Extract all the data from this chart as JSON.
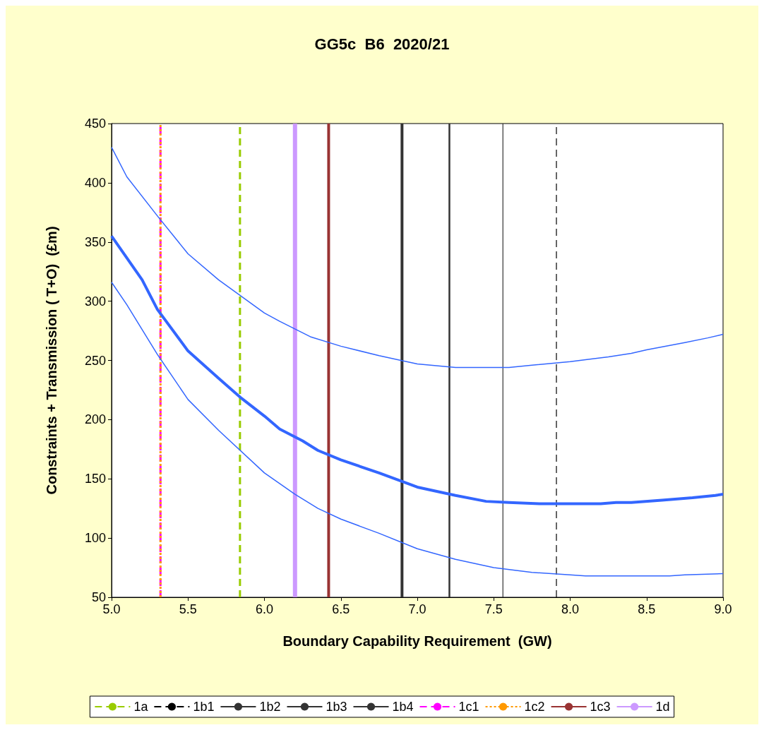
{
  "chart_data": {
    "type": "line",
    "title": "GG5c  B6  2020/21",
    "xlabel": "Boundary Capability Requirement  (GW)",
    "ylabel": "Constraints + Transmission ( T+O)  (£m)",
    "xlim": [
      5,
      9
    ],
    "xticks": [
      {
        "value": 5,
        "label": "5.0"
      },
      {
        "value": 5.5,
        "label": "5.5"
      },
      {
        "value": 6,
        "label": "6.0"
      },
      {
        "value": 6.5,
        "label": "6.5"
      },
      {
        "value": 7,
        "label": "7.0"
      },
      {
        "value": 7.5,
        "label": "7.5"
      },
      {
        "value": 8,
        "label": "8.0"
      },
      {
        "value": 8.5,
        "label": "8.5"
      },
      {
        "value": 9,
        "label": "9.0"
      }
    ],
    "ylim": [
      50,
      450
    ],
    "yticks": [
      50,
      100,
      150,
      200,
      250,
      300,
      350,
      400,
      450
    ],
    "grid": false,
    "legend": "bottom",
    "marker": "none",
    "series": [
      {
        "color": "#3366ff",
        "x": [
          5.0,
          5.1,
          5.3,
          5.5,
          5.7,
          6.0,
          6.1,
          6.3,
          6.5,
          6.75,
          7.0,
          7.25,
          7.5,
          7.6,
          7.75,
          8.0,
          8.25,
          8.4,
          8.5,
          8.75,
          8.9,
          9.0
        ],
        "values": [
          430,
          405,
          372,
          340,
          318,
          290,
          283,
          270,
          262,
          254,
          247,
          244,
          244,
          244,
          246,
          249,
          253,
          256,
          259,
          265,
          269,
          272
        ]
      },
      {
        "color": "#3366ff",
        "x": [
          5.0,
          5.2,
          5.3,
          5.5,
          5.7,
          5.85,
          6.0,
          6.1,
          6.25,
          6.35,
          6.5,
          6.75,
          7.0,
          7.25,
          7.45,
          7.6,
          7.8,
          8.0,
          8.2,
          8.3,
          8.4,
          8.6,
          8.8,
          8.95,
          9.0
        ],
        "values": [
          355,
          318,
          293,
          258,
          235,
          218,
          203,
          192,
          182,
          174,
          166,
          155,
          143,
          136,
          131,
          130,
          129,
          129,
          129,
          130,
          130,
          132,
          134,
          136,
          137
        ]
      },
      {
        "color": "#3366ff",
        "x": [
          5.0,
          5.1,
          5.3,
          5.5,
          5.7,
          6.0,
          6.2,
          6.35,
          6.5,
          6.75,
          7.0,
          7.25,
          7.5,
          7.75,
          8.0,
          8.1,
          8.5,
          8.65,
          8.75,
          9.0
        ],
        "values": [
          316,
          297,
          255,
          217,
          191,
          155,
          137,
          125,
          116,
          104,
          91,
          82,
          75,
          71,
          69,
          68,
          68,
          68,
          69,
          70
        ]
      },
      {
        "name": "1a",
        "color": "#99cc00",
        "line_style": "dashed",
        "x": [
          5.84,
          5.84
        ],
        "values": [
          50,
          450
        ]
      },
      {
        "name": "1b1",
        "color": "#000000",
        "line_style": "dashed",
        "x": [
          7.91,
          7.91
        ],
        "values": [
          50,
          450
        ]
      },
      {
        "name": "1b2",
        "color": "#333333",
        "x": [
          7.56,
          7.56
        ],
        "values": [
          50,
          450
        ]
      },
      {
        "name": "1b3",
        "color": "#333333",
        "x": [
          7.21,
          7.21
        ],
        "values": [
          50,
          450
        ]
      },
      {
        "name": "1b4",
        "color": "#333333",
        "x": [
          6.9,
          6.9
        ],
        "values": [
          50,
          450
        ]
      },
      {
        "name": "1c1",
        "color": "#ff00ff",
        "line_style": "dashed",
        "x": [
          5.32,
          5.32
        ],
        "values": [
          50,
          450
        ]
      },
      {
        "name": "1c2",
        "color": "#ff9900",
        "line_style": "dotted",
        "x": [
          5.32,
          5.32
        ],
        "values": [
          50,
          450
        ]
      },
      {
        "name": "1c3",
        "color": "#993333",
        "x": [
          6.42,
          6.42
        ],
        "values": [
          50,
          450
        ]
      },
      {
        "name": "1d",
        "color": "#cc99ff",
        "x": [
          6.2,
          6.2
        ],
        "values": [
          50,
          450
        ]
      }
    ]
  }
}
